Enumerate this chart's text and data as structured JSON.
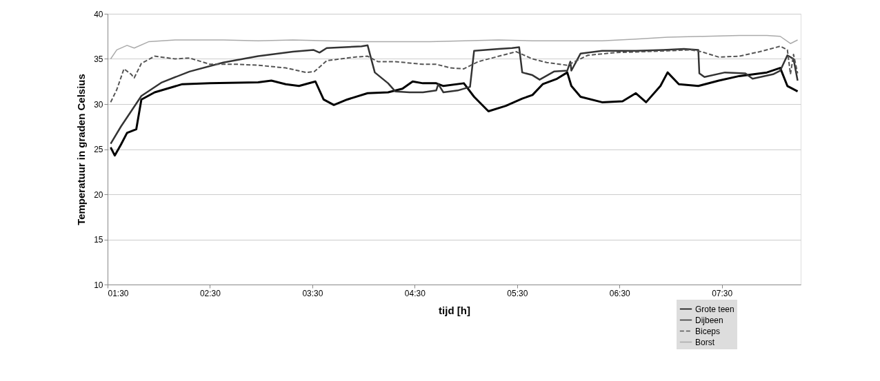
{
  "chart_data": {
    "type": "line",
    "xlabel": "tijd [h]",
    "ylabel": "Temperatuur in graden Celsius",
    "xlim": [
      1.5,
      8.27
    ],
    "ylim": [
      10,
      40
    ],
    "xticks": [
      {
        "value": 1.5,
        "label": "01:30"
      },
      {
        "value": 2.5,
        "label": "02:30"
      },
      {
        "value": 3.5,
        "label": "03:30"
      },
      {
        "value": 4.5,
        "label": "04:30"
      },
      {
        "value": 5.5,
        "label": "05:30"
      },
      {
        "value": 6.5,
        "label": "06:30"
      },
      {
        "value": 7.5,
        "label": "07:30"
      }
    ],
    "yticks": [
      10,
      15,
      20,
      25,
      30,
      35,
      40
    ],
    "grid": "y",
    "legend": "bottom right",
    "marker": "none",
    "series": [
      {
        "name": "Grote teen",
        "color": "#000000",
        "line_style": "solid",
        "x": [
          1.53,
          1.57,
          1.63,
          1.69,
          1.78,
          1.83,
          1.96,
          2.23,
          2.5,
          2.97,
          3.1,
          3.24,
          3.37,
          3.53,
          3.61,
          3.71,
          3.84,
          4.04,
          4.24,
          4.38,
          4.48,
          4.58,
          4.71,
          4.78,
          4.98,
          5.08,
          5.22,
          5.39,
          5.55,
          5.65,
          5.75,
          5.89,
          5.99,
          6.03,
          6.12,
          6.33,
          6.53,
          6.66,
          6.76,
          6.9,
          6.97,
          7.08,
          7.27,
          7.47,
          7.67,
          7.94,
          8.07,
          8.14,
          8.24
        ],
        "values": [
          25.2,
          24.3,
          25.5,
          26.8,
          27.2,
          30.5,
          31.3,
          32.2,
          32.3,
          32.4,
          32.6,
          32.2,
          32.0,
          32.5,
          30.5,
          29.9,
          30.5,
          31.2,
          31.3,
          31.7,
          32.5,
          32.3,
          32.3,
          32.0,
          32.3,
          30.8,
          29.2,
          29.8,
          30.6,
          31.0,
          32.2,
          32.8,
          33.5,
          32.0,
          30.8,
          30.2,
          30.3,
          31.2,
          30.2,
          32.0,
          33.5,
          32.2,
          32.0,
          32.6,
          33.1,
          33.5,
          34.0,
          32.0,
          31.4
        ]
      },
      {
        "name": "Dijbeen",
        "color": "#333333",
        "line_style": "solid",
        "x": [
          1.53,
          1.63,
          1.73,
          1.83,
          2.03,
          2.3,
          2.63,
          2.97,
          3.31,
          3.51,
          3.57,
          3.64,
          3.98,
          4.04,
          4.11,
          4.24,
          4.31,
          4.45,
          4.58,
          4.71,
          4.73,
          4.78,
          4.92,
          5.04,
          5.08,
          5.32,
          5.45,
          5.52,
          5.55,
          5.65,
          5.72,
          5.86,
          5.99,
          6.02,
          6.03,
          6.12,
          6.33,
          6.66,
          6.93,
          7.13,
          7.27,
          7.28,
          7.33,
          7.53,
          7.73,
          7.8,
          8.0,
          8.07,
          8.14,
          8.2,
          8.24
        ],
        "values": [
          25.6,
          27.5,
          29.2,
          30.9,
          32.4,
          33.6,
          34.6,
          35.3,
          35.8,
          36.0,
          35.7,
          36.2,
          36.4,
          36.5,
          33.5,
          32.3,
          31.4,
          31.3,
          31.3,
          31.5,
          32.2,
          31.3,
          31.5,
          31.9,
          35.9,
          36.1,
          36.2,
          36.3,
          33.5,
          33.2,
          32.7,
          33.6,
          33.7,
          34.7,
          33.7,
          35.6,
          35.9,
          35.9,
          36.0,
          36.1,
          36.0,
          33.4,
          33.0,
          33.5,
          33.4,
          32.8,
          33.3,
          33.7,
          35.4,
          35.0,
          32.6
        ]
      },
      {
        "name": "Biceps",
        "color": "#555555",
        "line_style": "dashed",
        "x": [
          1.53,
          1.59,
          1.66,
          1.73,
          1.76,
          1.83,
          1.96,
          2.16,
          2.3,
          2.5,
          2.77,
          2.97,
          3.24,
          3.44,
          3.52,
          3.64,
          3.91,
          4.04,
          4.14,
          4.31,
          4.58,
          4.71,
          4.85,
          4.98,
          5.12,
          5.39,
          5.49,
          5.55,
          5.65,
          5.79,
          5.99,
          6.19,
          6.46,
          6.73,
          6.97,
          7.2,
          7.3,
          7.47,
          7.67,
          7.87,
          8.07,
          8.14,
          8.17,
          8.2,
          8.24
        ],
        "values": [
          30.2,
          31.6,
          33.9,
          33.3,
          32.9,
          34.5,
          35.3,
          35.0,
          35.1,
          34.4,
          34.4,
          34.3,
          34.0,
          33.5,
          33.6,
          34.8,
          35.2,
          35.3,
          34.7,
          34.7,
          34.4,
          34.4,
          34.0,
          33.9,
          34.7,
          35.5,
          35.8,
          35.5,
          35.0,
          34.6,
          34.3,
          35.4,
          35.7,
          35.8,
          35.9,
          36.0,
          35.8,
          35.2,
          35.3,
          35.8,
          36.4,
          36.0,
          33.3,
          35.5,
          33.4
        ]
      },
      {
        "name": "Borst",
        "color": "#aaaaaa",
        "line_style": "solid",
        "x": [
          1.53,
          1.59,
          1.69,
          1.76,
          1.9,
          2.16,
          2.63,
          2.97,
          3.31,
          3.64,
          4.04,
          4.31,
          4.65,
          4.98,
          5.32,
          5.65,
          5.99,
          6.33,
          6.66,
          6.97,
          7.33,
          7.67,
          7.94,
          8.07,
          8.17,
          8.24
        ],
        "values": [
          35.0,
          36.0,
          36.5,
          36.2,
          36.9,
          37.1,
          37.1,
          37.0,
          37.1,
          37.0,
          36.9,
          36.9,
          36.9,
          37.0,
          37.1,
          37.0,
          37.0,
          37.0,
          37.2,
          37.4,
          37.5,
          37.6,
          37.6,
          37.5,
          36.7,
          37.1
        ]
      }
    ]
  }
}
